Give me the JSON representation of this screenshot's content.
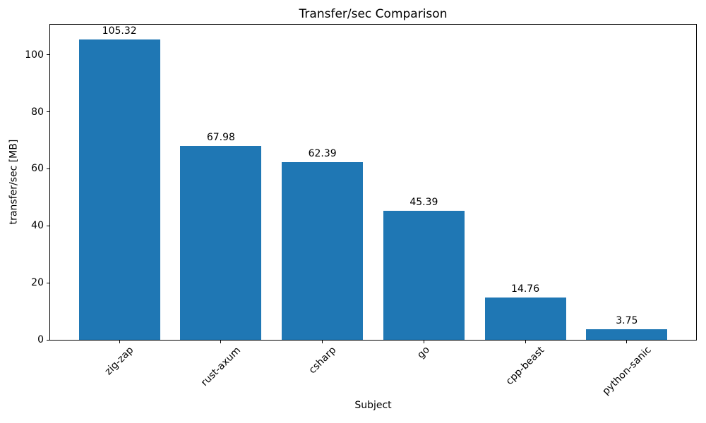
{
  "chart_data": {
    "type": "bar",
    "title": "Transfer/sec Comparison",
    "xlabel": "Subject",
    "ylabel": "transfer/sec [MB]",
    "categories": [
      "zig-zap",
      "rust-axum",
      "csharp",
      "go",
      "cpp-beast",
      "python-sanic"
    ],
    "values": [
      105.32,
      67.98,
      62.39,
      45.39,
      14.76,
      3.75
    ],
    "bar_labels": [
      "105.32",
      "67.98",
      "62.39",
      "45.39",
      "14.76",
      "3.75"
    ],
    "y_ticks": [
      0,
      20,
      40,
      60,
      80,
      100
    ],
    "ylim": [
      0,
      110.59
    ],
    "xlim": [
      -0.69,
      5.69
    ],
    "bar_width_units": 0.8,
    "x_tick_rotation_deg": 45,
    "bar_color": "#1f77b4",
    "text_color": "#000000",
    "grid": false,
    "legend": null
  }
}
